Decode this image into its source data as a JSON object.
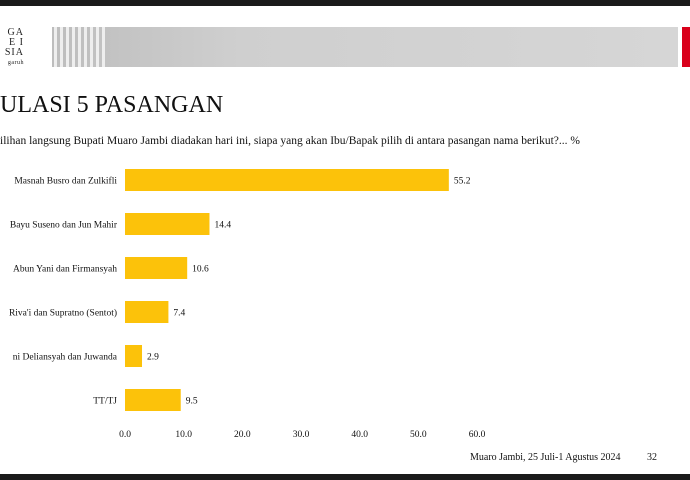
{
  "header": {
    "logo_lines": [
      "GA",
      "E I",
      "SIA",
      "garuh"
    ],
    "accent_color": "#d9001b",
    "band_color": "#c8c8c8"
  },
  "slide": {
    "title": "ULASI 5 PASANGAN",
    "question": "ilihan langsung Bupati Muaro Jambi diadakan hari ini, siapa yang akan Ibu/Bapak pilih di antara pasangan nama berikut?... %",
    "footer_text": "Muaro Jambi, 25 Juli-1 Agustus 2024",
    "page_number": "32"
  },
  "chart_data": {
    "type": "bar",
    "orientation": "horizontal",
    "categories": [
      "Masnah Busro dan Zulkifli",
      "Bayu Suseno dan Jun Mahir",
      "Abun Yani dan Firmansyah",
      "Riva'i dan Supratno (Sentot)",
      "ni Deliansyah dan Juwanda",
      "TT/TJ"
    ],
    "values": [
      55.2,
      14.4,
      10.6,
      7.4,
      2.9,
      9.5
    ],
    "value_labels": [
      "55.2",
      "14.4",
      "10.6",
      "7.4",
      "2.9",
      "9.5"
    ],
    "xlim": [
      0,
      60
    ],
    "xticks": [
      "0.0",
      "10.0",
      "20.0",
      "30.0",
      "40.0",
      "50.0",
      "60.0"
    ],
    "bar_color": "#fcc20a",
    "grid": false
  }
}
